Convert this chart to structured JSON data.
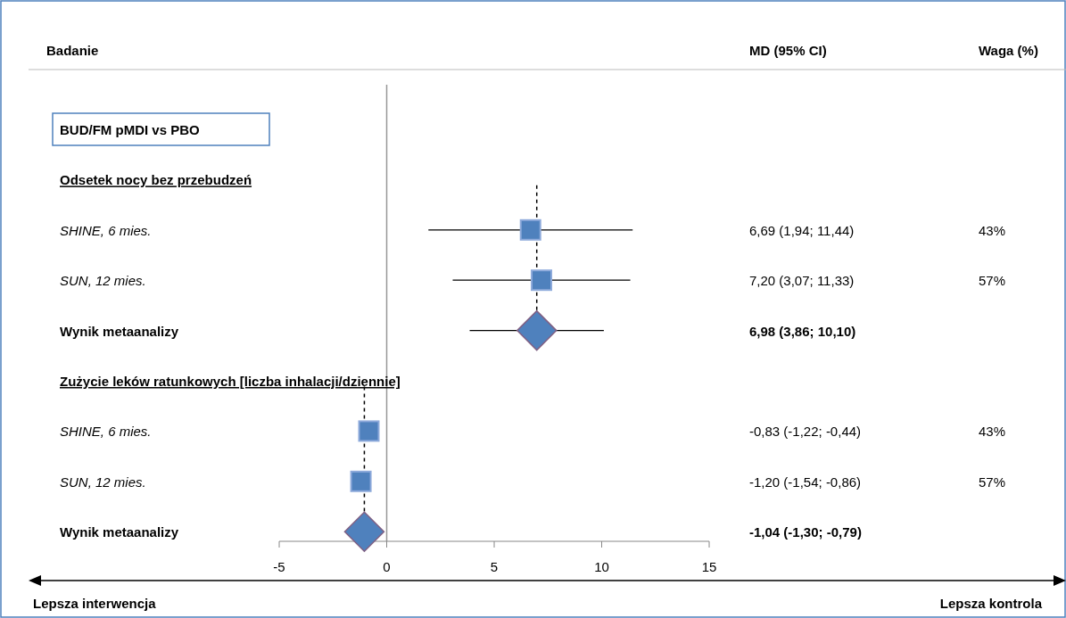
{
  "chart_data": {
    "type": "scatter",
    "orientation": "horizontal",
    "categories": [
      "BUD/FM pMDI vs PBO",
      "Odsetek nocy bez przebudzeń",
      "SHINE, 6 mies.",
      "SUN, 12 mies.",
      "Wynik metaanalizy",
      "Zużycie leków ratunkowych [liczba inhalacji/dziennie]",
      "SHINE, 6 mies.",
      "SUN, 12 mies.",
      "Wynik metaanalizy"
    ],
    "series": [
      {
        "marker": "square",
        "color": "#4f81bd",
        "values": [
          null,
          null,
          6.69,
          7.2,
          null,
          null,
          -0.83,
          -1.2,
          null
        ],
        "errors": [
          null,
          null,
          [
            1.94,
            11.44
          ],
          [
            3.07,
            11.33
          ],
          null,
          null,
          null,
          null,
          null
        ]
      },
      {
        "marker": "diamond",
        "color": "#4f81bd",
        "values": [
          null,
          null,
          null,
          null,
          6.98,
          null,
          null,
          null,
          -1.04
        ],
        "errors": [
          null,
          null,
          null,
          null,
          [
            3.86,
            10.1
          ],
          null,
          null,
          null,
          null
        ]
      }
    ],
    "xlim": [
      -5,
      15
    ],
    "xticks": [
      -5,
      0,
      5,
      10,
      15
    ],
    "ref_lines": [
      {
        "axis": "x",
        "value": 0,
        "color": "#999999",
        "line_style": "solid"
      },
      {
        "axis": "x",
        "value": 6.98,
        "color": "#000000",
        "line_style": "dashed"
      },
      {
        "axis": "x",
        "value": -1.04,
        "color": "#000000",
        "line_style": "dashed"
      }
    ],
    "annotations": [
      "Badanie",
      "MD (95% CI)",
      "Waga (%)",
      "Lepsza interwencja",
      "Lepsza kontrola",
      "6,69 (1,94; 11,44)",
      "7,20 (3,07; 11,33)",
      "6,98 (3,86; 10,10)",
      "-0,83 (-1,22; -0,44)",
      "-1,20 (-1,54; -0,86)",
      "-1,04 (-1,30; -0,79)",
      "43%",
      "57%",
      "43%",
      "57%"
    ]
  }
}
